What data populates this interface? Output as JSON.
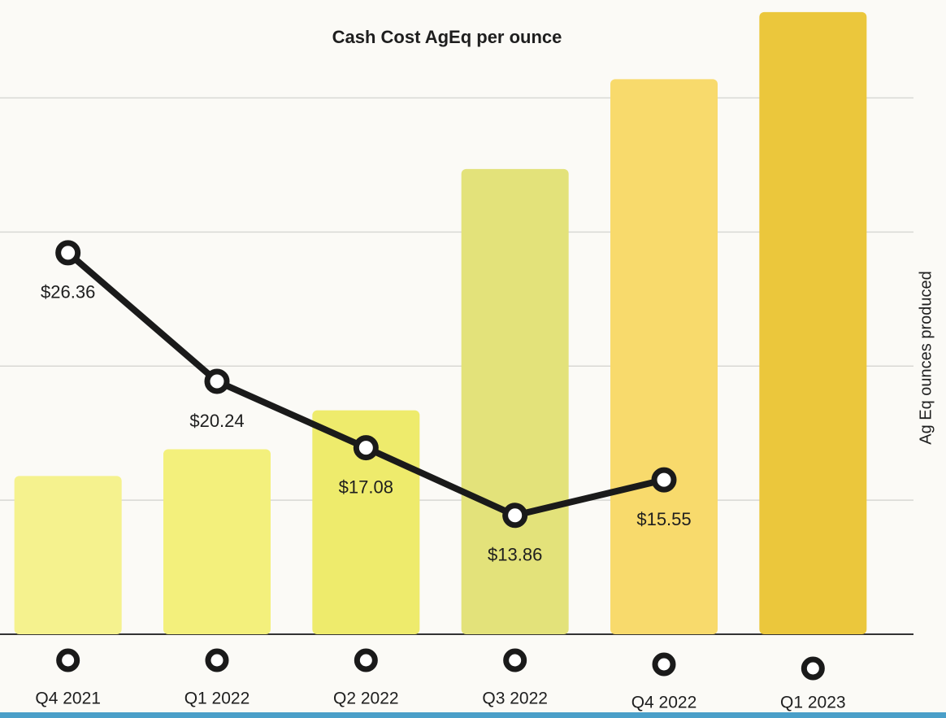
{
  "chart_data": {
    "type": "bar_line",
    "title": "Cash Cost AgEq per ounce",
    "y_axis_label": "Ag Eq ounces produced",
    "categories": [
      "Q4 2021",
      "Q1 2022",
      "Q2 2022",
      "Q3 2022",
      "Q4 2022",
      "Q1 2023"
    ],
    "bars": {
      "values": [
        1.18,
        1.38,
        1.67,
        3.47,
        4.14,
        4.64
      ],
      "colors": [
        "#f5f28e",
        "#f3f07c",
        "#eeeb6c",
        "#e3e27a",
        "#f8da6c",
        "#ebc73c"
      ]
    },
    "line": {
      "values": [
        26.36,
        20.24,
        17.08,
        13.86,
        15.55,
        null
      ],
      "value_labels": [
        "$26.36",
        "$20.24",
        "$17.08",
        "$13.86",
        "$15.55",
        null
      ],
      "color": "#1a1a1a",
      "axis": "y2"
    },
    "ylim": [
      0,
      4.7
    ],
    "yticks": [
      0,
      1,
      2,
      3,
      4
    ],
    "y2lim": [
      8.2,
      38.2
    ],
    "grid": true
  }
}
